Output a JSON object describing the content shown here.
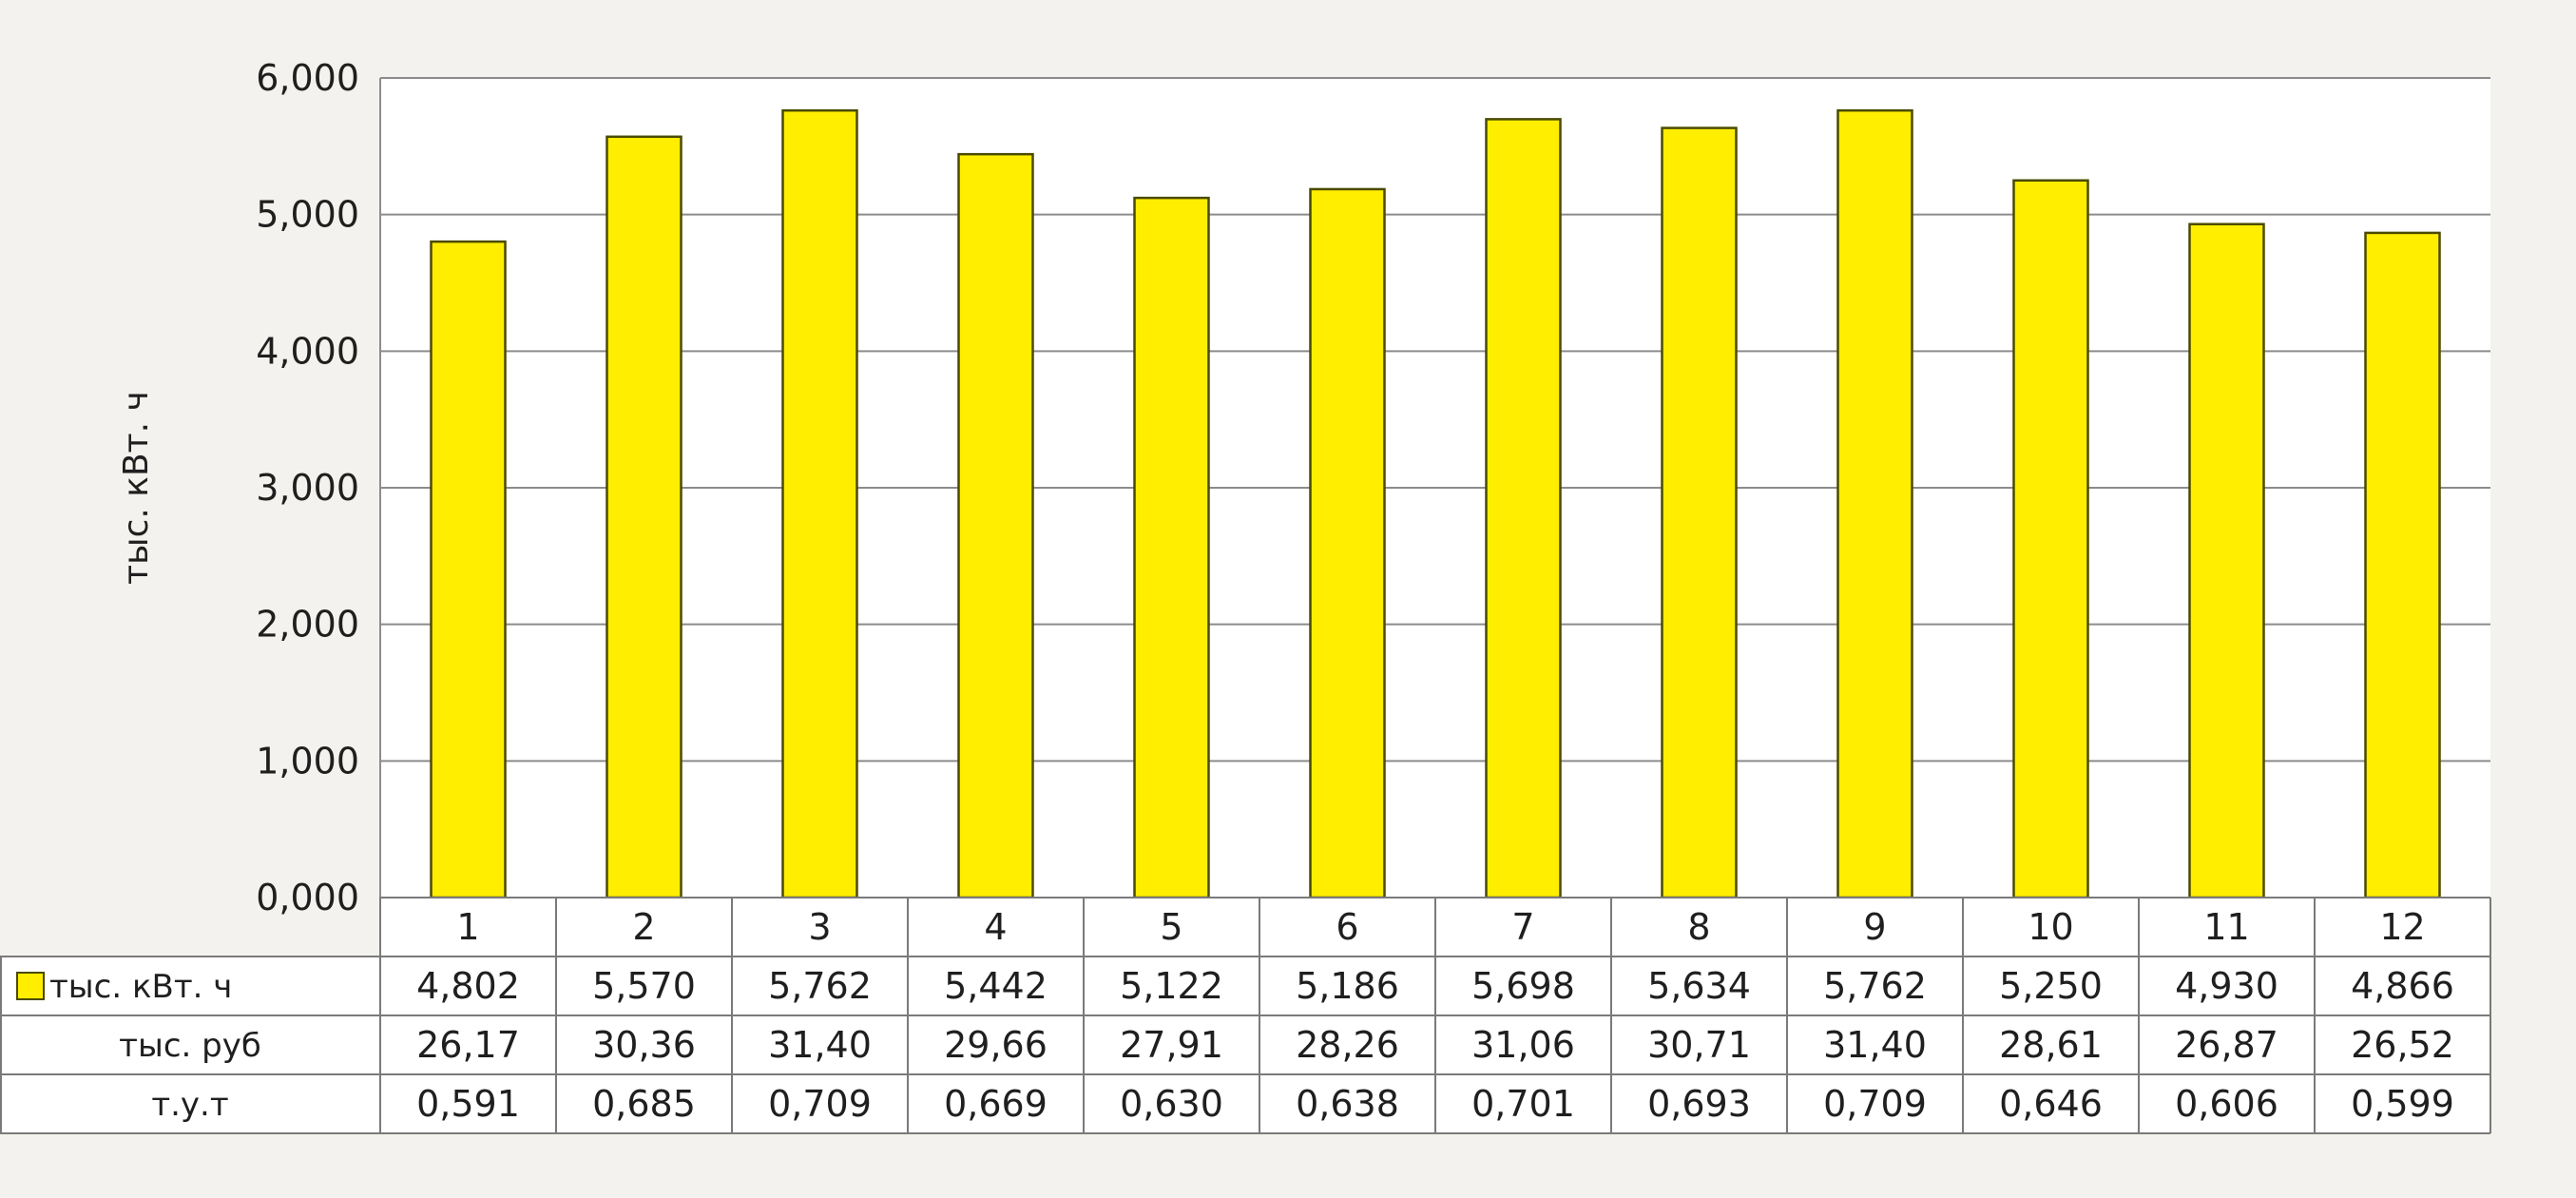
{
  "chart_data": {
    "type": "bar",
    "ylabel": "тыс. кВт. ч",
    "ylim": [
      0,
      6
    ],
    "yticks": [
      "0,000",
      "1,000",
      "2,000",
      "3,000",
      "4,000",
      "5,000",
      "6,000"
    ],
    "grid": true,
    "categories": [
      "1",
      "2",
      "3",
      "4",
      "5",
      "6",
      "7",
      "8",
      "9",
      "10",
      "11",
      "12"
    ],
    "series": [
      {
        "name": "тыс. кВт. ч",
        "color": "#ffee00",
        "values": [
          4.802,
          5.57,
          5.762,
          5.442,
          5.122,
          5.186,
          5.698,
          5.634,
          5.762,
          5.25,
          4.93,
          4.866
        ]
      }
    ],
    "table": {
      "rows": [
        {
          "label": "тыс. кВт. ч",
          "legend_key": true,
          "values": [
            "4,802",
            "5,570",
            "5,762",
            "5,442",
            "5,122",
            "5,186",
            "5,698",
            "5,634",
            "5,762",
            "5,250",
            "4,930",
            "4,866"
          ]
        },
        {
          "label": "тыс. руб",
          "legend_key": false,
          "values": [
            "26,17",
            "30,36",
            "31,40",
            "29,66",
            "27,91",
            "28,26",
            "31,06",
            "30,71",
            "31,40",
            "28,61",
            "26,87",
            "26,52"
          ]
        },
        {
          "label": "т.у.т",
          "legend_key": false,
          "values": [
            "0,591",
            "0,685",
            "0,709",
            "0,669",
            "0,630",
            "0,638",
            "0,701",
            "0,693",
            "0,709",
            "0,646",
            "0,606",
            "0,599"
          ]
        }
      ]
    }
  }
}
